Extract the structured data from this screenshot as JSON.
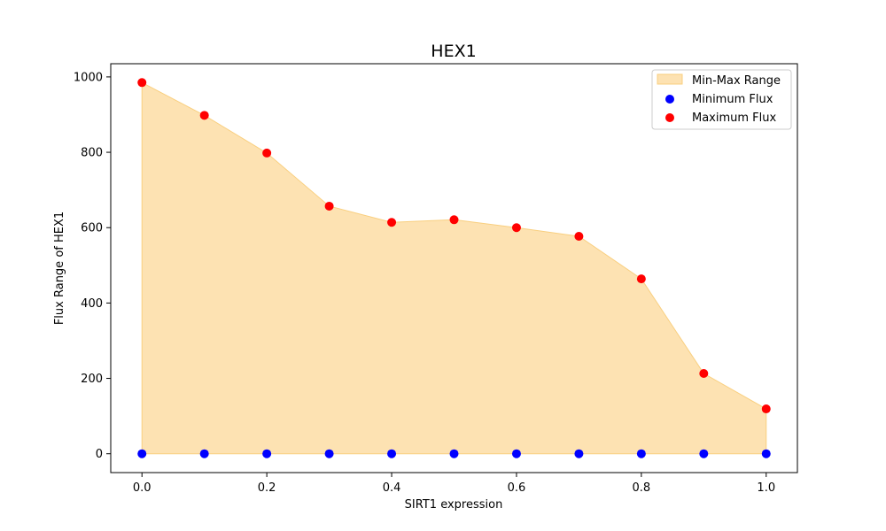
{
  "chart_data": {
    "type": "scatter",
    "title": "HEX1",
    "xlabel": "SIRT1 expression",
    "ylabel": "Flux Range of HEX1",
    "xlim": [
      -0.05,
      1.05
    ],
    "ylim": [
      -50,
      1035
    ],
    "xticks": [
      "0.0",
      "0.2",
      "0.4",
      "0.6",
      "0.8",
      "1.0"
    ],
    "yticks": [
      "0",
      "200",
      "400",
      "600",
      "800",
      "1000"
    ],
    "grid": false,
    "legend_position": "top-right",
    "x": [
      0.0,
      0.1,
      0.2,
      0.3,
      0.4,
      0.5,
      0.6,
      0.7,
      0.8,
      0.9,
      1.0
    ],
    "range_fill": {
      "name": "Min-Max Range",
      "color": "#fde2b2",
      "edge_color": "#f9cf7f"
    },
    "series": [
      {
        "name": "Minimum Flux",
        "color": "#0000ff",
        "values": [
          0,
          0,
          0,
          0,
          0,
          0,
          0,
          0,
          0,
          0,
          0
        ]
      },
      {
        "name": "Maximum Flux",
        "color": "#ff0000",
        "values": [
          985,
          898,
          798,
          657,
          614,
          621,
          600,
          577,
          464,
          213,
          119
        ]
      }
    ]
  }
}
